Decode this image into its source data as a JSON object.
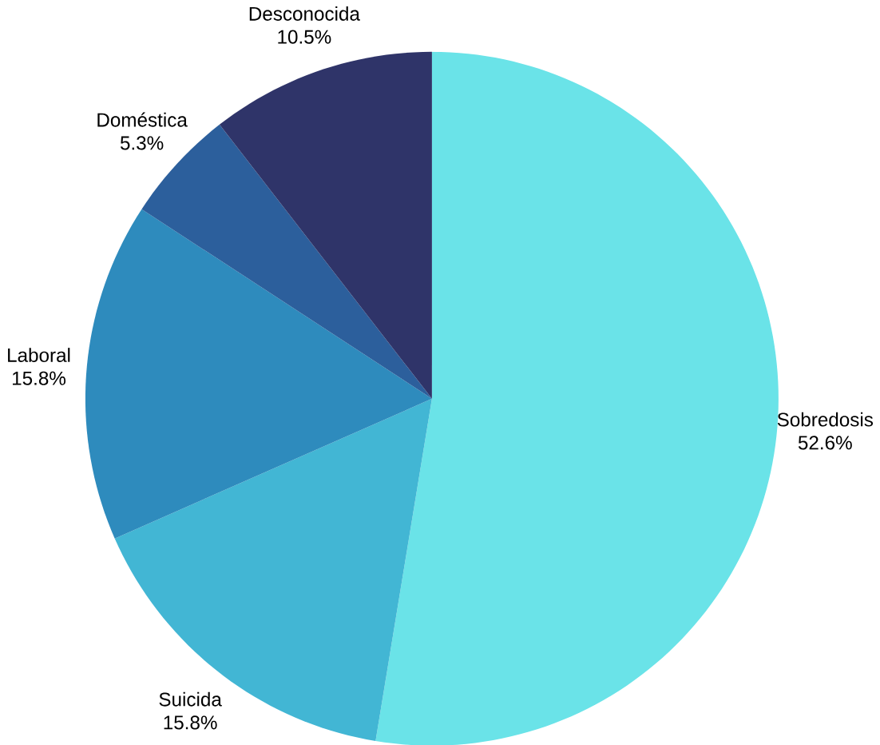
{
  "chart_data": {
    "type": "pie",
    "categories": [
      "Sobredosis",
      "Suicida",
      "Laboral",
      "Doméstica",
      "Desconocida"
    ],
    "values": [
      52.6,
      15.8,
      15.8,
      5.3,
      10.5
    ],
    "value_labels": [
      "52.6%",
      "15.8%",
      "15.8%",
      "5.3%",
      "10.5%"
    ],
    "colors": [
      "#6ae3e8",
      "#42b6d4",
      "#2e8bbd",
      "#2c5f9c",
      "#2f3469"
    ]
  }
}
